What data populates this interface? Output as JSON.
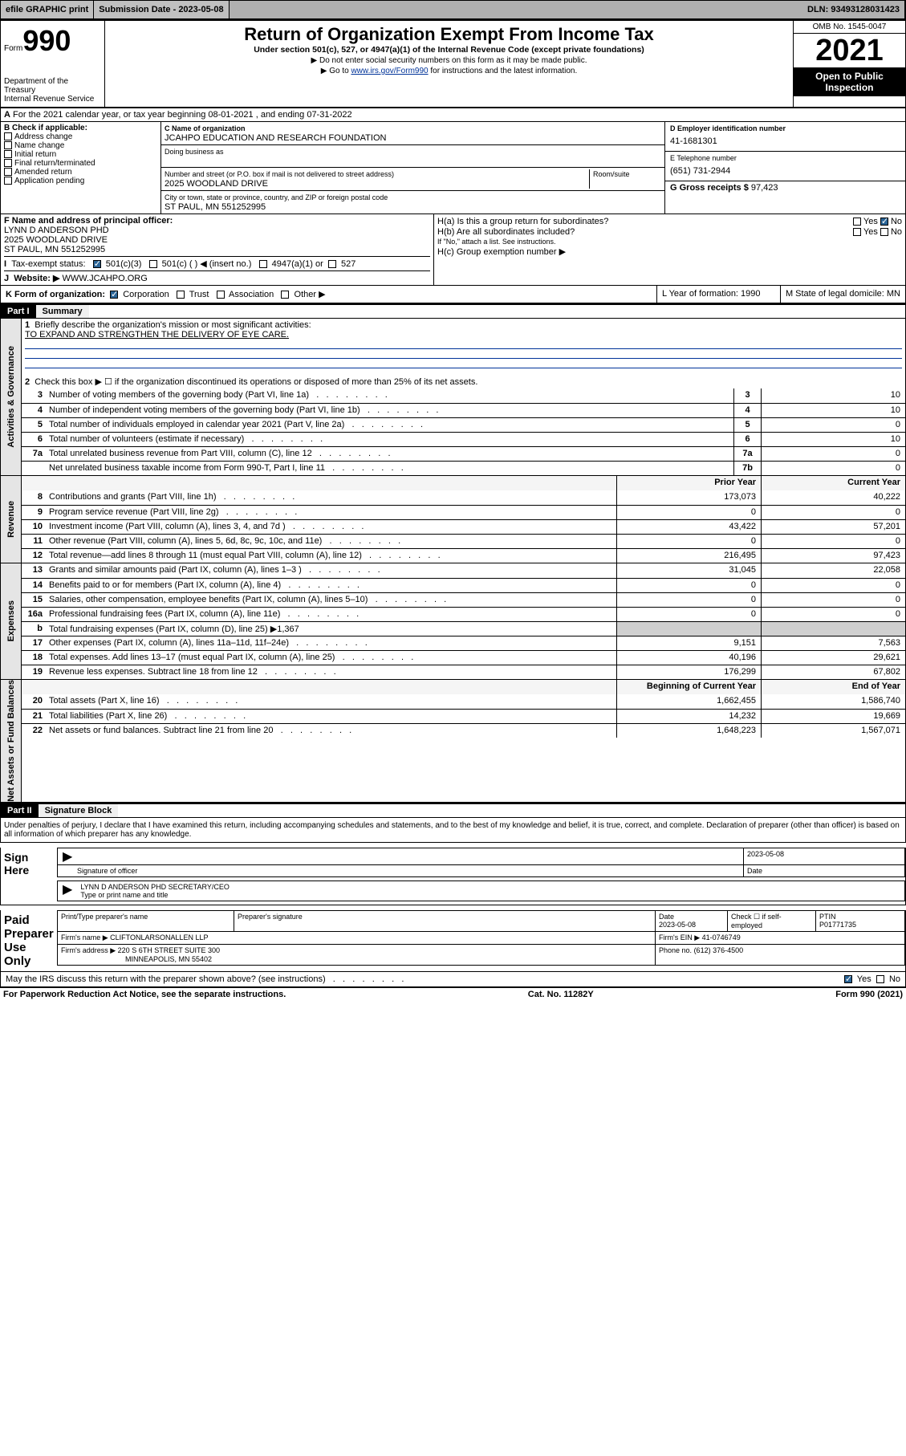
{
  "topbar": {
    "efile": "efile GRAPHIC print",
    "submission": "Submission Date - 2023-05-08",
    "dln": "DLN: 93493128031423"
  },
  "header": {
    "form_label": "Form",
    "form_num": "990",
    "dept": "Department of the Treasury",
    "irs": "Internal Revenue Service",
    "title": "Return of Organization Exempt From Income Tax",
    "sub": "Under section 501(c), 527, or 4947(a)(1) of the Internal Revenue Code (except private foundations)",
    "note1": "Do not enter social security numbers on this form as it may be made public.",
    "note2_pre": "Go to ",
    "note2_link": "www.irs.gov/Form990",
    "note2_post": " for instructions and the latest information.",
    "omb": "OMB No. 1545-0047",
    "year": "2021",
    "inspect": "Open to Public Inspection"
  },
  "A": {
    "text": "For the 2021 calendar year, or tax year beginning 08-01-2021   , and ending 07-31-2022"
  },
  "B": {
    "label": "B Check if applicable:",
    "opts": [
      "Address change",
      "Name change",
      "Initial return",
      "Final return/terminated",
      "Amended return",
      "Application pending"
    ]
  },
  "C": {
    "name_lbl": "C Name of organization",
    "name": "JCAHPO EDUCATION AND RESEARCH FOUNDATION",
    "dba_lbl": "Doing business as",
    "addr_lbl": "Number and street (or P.O. box if mail is not delivered to street address)",
    "room_lbl": "Room/suite",
    "addr": "2025 WOODLAND DRIVE",
    "city_lbl": "City or town, state or province, country, and ZIP or foreign postal code",
    "city": "ST PAUL, MN  551252995"
  },
  "D": {
    "lbl": "D Employer identification number",
    "val": "41-1681301"
  },
  "E": {
    "lbl": "E Telephone number",
    "val": "(651) 731-2944"
  },
  "G": {
    "lbl": "G Gross receipts $",
    "val": "97,423"
  },
  "F": {
    "lbl": "F  Name and address of principal officer:",
    "l1": "LYNN D ANDERSON PHD",
    "l2": "2025 WOODLAND DRIVE",
    "l3": "ST PAUL, MN  551252995"
  },
  "H": {
    "a": "H(a)  Is this a group return for subordinates?",
    "b": "H(b)  Are all subordinates included?",
    "note": "If \"No,\" attach a list. See instructions.",
    "c": "H(c)  Group exemption number ▶",
    "yes": "Yes",
    "no": "No"
  },
  "I": {
    "lbl": "Tax-exempt status:",
    "o1": "501(c)(3)",
    "o2": "501(c) (  ) ◀ (insert no.)",
    "o3": "4947(a)(1) or",
    "o4": "527"
  },
  "J": {
    "lbl": "Website: ▶",
    "val": "WWW.JCAHPO.ORG"
  },
  "K": {
    "lbl": "K Form of organization:",
    "o1": "Corporation",
    "o2": "Trust",
    "o3": "Association",
    "o4": "Other ▶",
    "L": "L Year of formation: 1990",
    "M": "M State of legal domicile: MN"
  },
  "part1": {
    "title": "Part I",
    "label": "Summary",
    "l1": "Briefly describe the organization's mission or most significant activities:",
    "mission": "TO EXPAND AND STRENGTHEN THE DELIVERY OF EYE CARE.",
    "l2": "Check this box ▶ ☐  if the organization discontinued its operations or disposed of more than 25% of its net assets."
  },
  "govRows": [
    {
      "n": "3",
      "d": "Number of voting members of the governing body (Part VI, line 1a)",
      "b": "3",
      "v": "10"
    },
    {
      "n": "4",
      "d": "Number of independent voting members of the governing body (Part VI, line 1b)",
      "b": "4",
      "v": "10"
    },
    {
      "n": "5",
      "d": "Total number of individuals employed in calendar year 2021 (Part V, line 2a)",
      "b": "5",
      "v": "0"
    },
    {
      "n": "6",
      "d": "Total number of volunteers (estimate if necessary)",
      "b": "6",
      "v": "10"
    },
    {
      "n": "7a",
      "d": "Total unrelated business revenue from Part VIII, column (C), line 12",
      "b": "7a",
      "v": "0"
    },
    {
      "n": "",
      "d": "Net unrelated business taxable income from Form 990-T, Part I, line 11",
      "b": "7b",
      "v": "0"
    }
  ],
  "colHdr": {
    "prior": "Prior Year",
    "current": "Current Year",
    "boy": "Beginning of Current Year",
    "eoy": "End of Year"
  },
  "revRows": [
    {
      "n": "8",
      "d": "Contributions and grants (Part VIII, line 1h)",
      "p": "173,073",
      "c": "40,222"
    },
    {
      "n": "9",
      "d": "Program service revenue (Part VIII, line 2g)",
      "p": "0",
      "c": "0"
    },
    {
      "n": "10",
      "d": "Investment income (Part VIII, column (A), lines 3, 4, and 7d )",
      "p": "43,422",
      "c": "57,201"
    },
    {
      "n": "11",
      "d": "Other revenue (Part VIII, column (A), lines 5, 6d, 8c, 9c, 10c, and 11e)",
      "p": "0",
      "c": "0"
    },
    {
      "n": "12",
      "d": "Total revenue—add lines 8 through 11 (must equal Part VIII, column (A), line 12)",
      "p": "216,495",
      "c": "97,423"
    }
  ],
  "expRows": [
    {
      "n": "13",
      "d": "Grants and similar amounts paid (Part IX, column (A), lines 1–3 )",
      "p": "31,045",
      "c": "22,058"
    },
    {
      "n": "14",
      "d": "Benefits paid to or for members (Part IX, column (A), line 4)",
      "p": "0",
      "c": "0"
    },
    {
      "n": "15",
      "d": "Salaries, other compensation, employee benefits (Part IX, column (A), lines 5–10)",
      "p": "0",
      "c": "0"
    },
    {
      "n": "16a",
      "d": "Professional fundraising fees (Part IX, column (A), line 11e)",
      "p": "0",
      "c": "0"
    },
    {
      "n": "b",
      "d": "Total fundraising expenses (Part IX, column (D), line 25) ▶1,367",
      "p": "",
      "c": "",
      "shade": true
    },
    {
      "n": "17",
      "d": "Other expenses (Part IX, column (A), lines 11a–11d, 11f–24e)",
      "p": "9,151",
      "c": "7,563"
    },
    {
      "n": "18",
      "d": "Total expenses. Add lines 13–17 (must equal Part IX, column (A), line 25)",
      "p": "40,196",
      "c": "29,621"
    },
    {
      "n": "19",
      "d": "Revenue less expenses. Subtract line 18 from line 12",
      "p": "176,299",
      "c": "67,802"
    }
  ],
  "netRows": [
    {
      "n": "20",
      "d": "Total assets (Part X, line 16)",
      "p": "1,662,455",
      "c": "1,586,740"
    },
    {
      "n": "21",
      "d": "Total liabilities (Part X, line 26)",
      "p": "14,232",
      "c": "19,669"
    },
    {
      "n": "22",
      "d": "Net assets or fund balances. Subtract line 21 from line 20",
      "p": "1,648,223",
      "c": "1,567,071"
    }
  ],
  "tabs": {
    "gov": "Activities & Governance",
    "rev": "Revenue",
    "exp": "Expenses",
    "net": "Net Assets or Fund Balances"
  },
  "part2": {
    "title": "Part II",
    "label": "Signature Block",
    "penalty": "Under penalties of perjury, I declare that I have examined this return, including accompanying schedules and statements, and to the best of my knowledge and belief, it is true, correct, and complete. Declaration of preparer (other than officer) is based on all information of which preparer has any knowledge.",
    "date": "2023-05-08",
    "sig_lbl": "Signature of officer",
    "date_lbl": "Date",
    "name": "LYNN D ANDERSON PHD  SECRETARY/CEO",
    "name_lbl": "Type or print name and title",
    "sign": "Sign Here",
    "paid": "Paid Preparer Use Only",
    "prep_name_lbl": "Print/Type preparer's name",
    "prep_sig_lbl": "Preparer's signature",
    "prep_date": "2023-05-08",
    "check_lbl": "Check ☐ if self-employed",
    "ptin_lbl": "PTIN",
    "ptin": "P01771735",
    "firm_lbl": "Firm's name   ▶",
    "firm": "CLIFTONLARSONALLEN LLP",
    "ein_lbl": "Firm's EIN ▶",
    "ein": "41-0746749",
    "addr_lbl": "Firm's address ▶",
    "addr1": "220 S 6TH STREET SUITE 300",
    "addr2": "MINNEAPOLIS, MN  55402",
    "phone_lbl": "Phone no.",
    "phone": "(612) 376-4500",
    "discuss": "May the IRS discuss this return with the preparer shown above? (see instructions)"
  },
  "footer": {
    "l": "For Paperwork Reduction Act Notice, see the separate instructions.",
    "m": "Cat. No. 11282Y",
    "r": "Form 990 (2021)"
  }
}
